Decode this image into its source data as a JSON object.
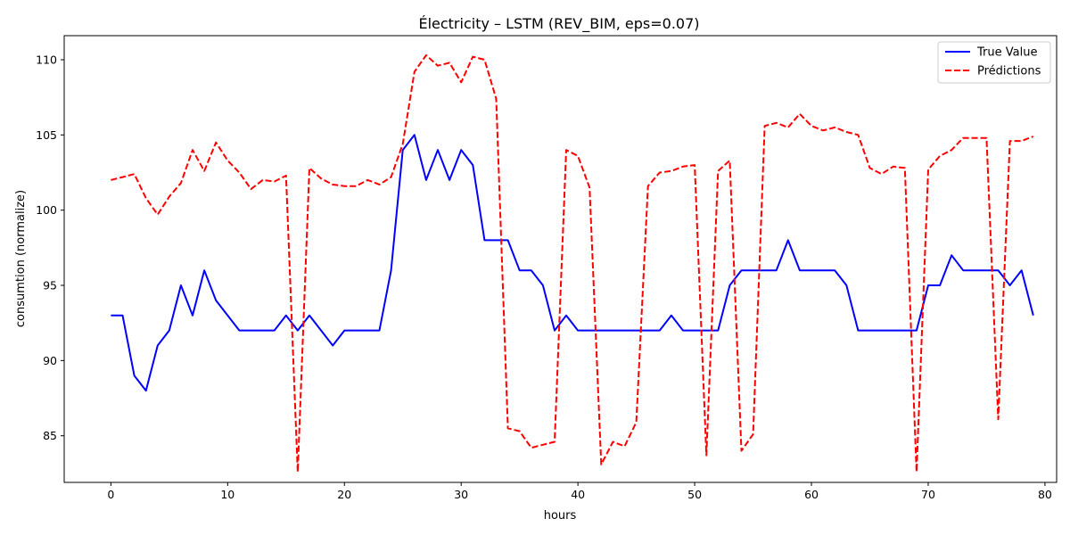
{
  "chart_data": {
    "type": "line",
    "title": "Électricity – LSTM (REV_BIM, eps=0.07)",
    "xlabel": "hours",
    "ylabel": "consumtion (normalize)",
    "xlim": [
      -4,
      81
    ],
    "ylim": [
      81.9,
      111.6
    ],
    "xticks": [
      0,
      10,
      20,
      30,
      40,
      50,
      60,
      70,
      80
    ],
    "yticks": [
      85,
      90,
      95,
      100,
      105,
      110
    ],
    "legend_position": "top-right",
    "grid": false,
    "series": [
      {
        "name": "True Value",
        "color": "#0000ff",
        "style": "solid",
        "x": [
          0,
          1,
          2,
          3,
          4,
          5,
          6,
          7,
          8,
          9,
          10,
          11,
          12,
          13,
          14,
          15,
          16,
          17,
          18,
          19,
          20,
          21,
          22,
          23,
          24,
          25,
          26,
          27,
          28,
          29,
          30,
          31,
          32,
          33,
          34,
          35,
          36,
          37,
          38,
          39,
          40,
          41,
          42,
          43,
          44,
          45,
          46,
          47,
          48,
          49,
          50,
          51,
          52,
          53,
          54,
          55,
          56,
          57,
          58,
          59,
          60,
          61,
          62,
          63,
          64,
          65,
          66,
          67,
          68,
          69,
          70,
          71,
          72,
          73,
          74,
          75,
          76,
          77,
          78,
          79
        ],
        "values": [
          93,
          93,
          89,
          88,
          91,
          92,
          95,
          93,
          96,
          94,
          93,
          92,
          92,
          92,
          92,
          93,
          92,
          93,
          92,
          91,
          92,
          92,
          92,
          92,
          96,
          104,
          105,
          102,
          104,
          102,
          104,
          103,
          98,
          98,
          98,
          96,
          96,
          95,
          92,
          93,
          92,
          92,
          92,
          92,
          92,
          92,
          92,
          92,
          93,
          92,
          92,
          92,
          92,
          95,
          96,
          96,
          96,
          96,
          98,
          96,
          96,
          96,
          96,
          95,
          92,
          92,
          92,
          92,
          92,
          92,
          95,
          95,
          97,
          96,
          96,
          96,
          96,
          95,
          96,
          93
        ]
      },
      {
        "name": "Prédictions",
        "color": "#ff0000",
        "style": "dashed",
        "x": [
          0,
          1,
          2,
          3,
          4,
          5,
          6,
          7,
          8,
          9,
          10,
          11,
          12,
          13,
          14,
          15,
          16,
          17,
          18,
          19,
          20,
          21,
          22,
          23,
          24,
          25,
          26,
          27,
          28,
          29,
          30,
          31,
          32,
          33,
          34,
          35,
          36,
          37,
          38,
          39,
          40,
          41,
          42,
          43,
          44,
          45,
          46,
          47,
          48,
          49,
          50,
          51,
          52,
          53,
          54,
          55,
          56,
          57,
          58,
          59,
          60,
          61,
          62,
          63,
          64,
          65,
          66,
          67,
          68,
          69,
          70,
          71,
          72,
          73,
          74,
          75,
          76,
          77,
          78,
          79
        ],
        "values": [
          102.0,
          102.2,
          102.4,
          100.8,
          99.7,
          100.9,
          101.8,
          104.0,
          102.6,
          104.5,
          103.3,
          102.5,
          101.4,
          102.0,
          101.9,
          102.3,
          82.6,
          102.8,
          102.1,
          101.7,
          101.6,
          101.6,
          102.0,
          101.7,
          102.2,
          104.4,
          109.2,
          110.3,
          109.6,
          109.8,
          108.5,
          110.2,
          110.0,
          107.4,
          85.5,
          85.3,
          84.2,
          84.4,
          84.6,
          104.0,
          103.6,
          101.5,
          83.1,
          84.6,
          84.3,
          85.9,
          101.6,
          102.5,
          102.6,
          102.9,
          103.0,
          83.7,
          102.6,
          103.3,
          84.0,
          85.1,
          105.6,
          105.8,
          105.5,
          106.4,
          105.6,
          105.3,
          105.5,
          105.2,
          105.0,
          102.8,
          102.4,
          102.9,
          102.8,
          82.6,
          102.7,
          103.6,
          104.0,
          104.8,
          104.8,
          104.8,
          86.1,
          104.6,
          104.6,
          104.9
        ]
      }
    ]
  }
}
